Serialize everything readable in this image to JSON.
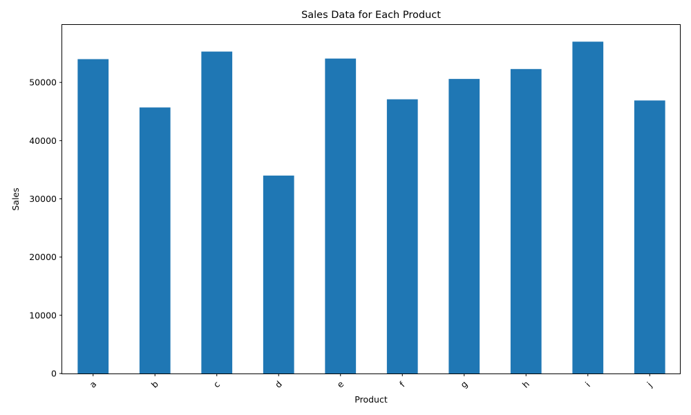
{
  "chart_data": {
    "type": "bar",
    "title": "Sales Data for Each Product",
    "xlabel": "Product",
    "ylabel": "Sales",
    "categories": [
      "a",
      "b",
      "c",
      "d",
      "e",
      "f",
      "g",
      "h",
      "i",
      "j"
    ],
    "values": [
      54000,
      45700,
      55300,
      34000,
      54100,
      47100,
      50600,
      52300,
      57000,
      46900
    ],
    "ylim": [
      0,
      60000
    ],
    "yticks": [
      0,
      10000,
      20000,
      30000,
      40000,
      50000
    ],
    "bar_color": "#1f77b4",
    "grid": false,
    "legend": "none"
  }
}
